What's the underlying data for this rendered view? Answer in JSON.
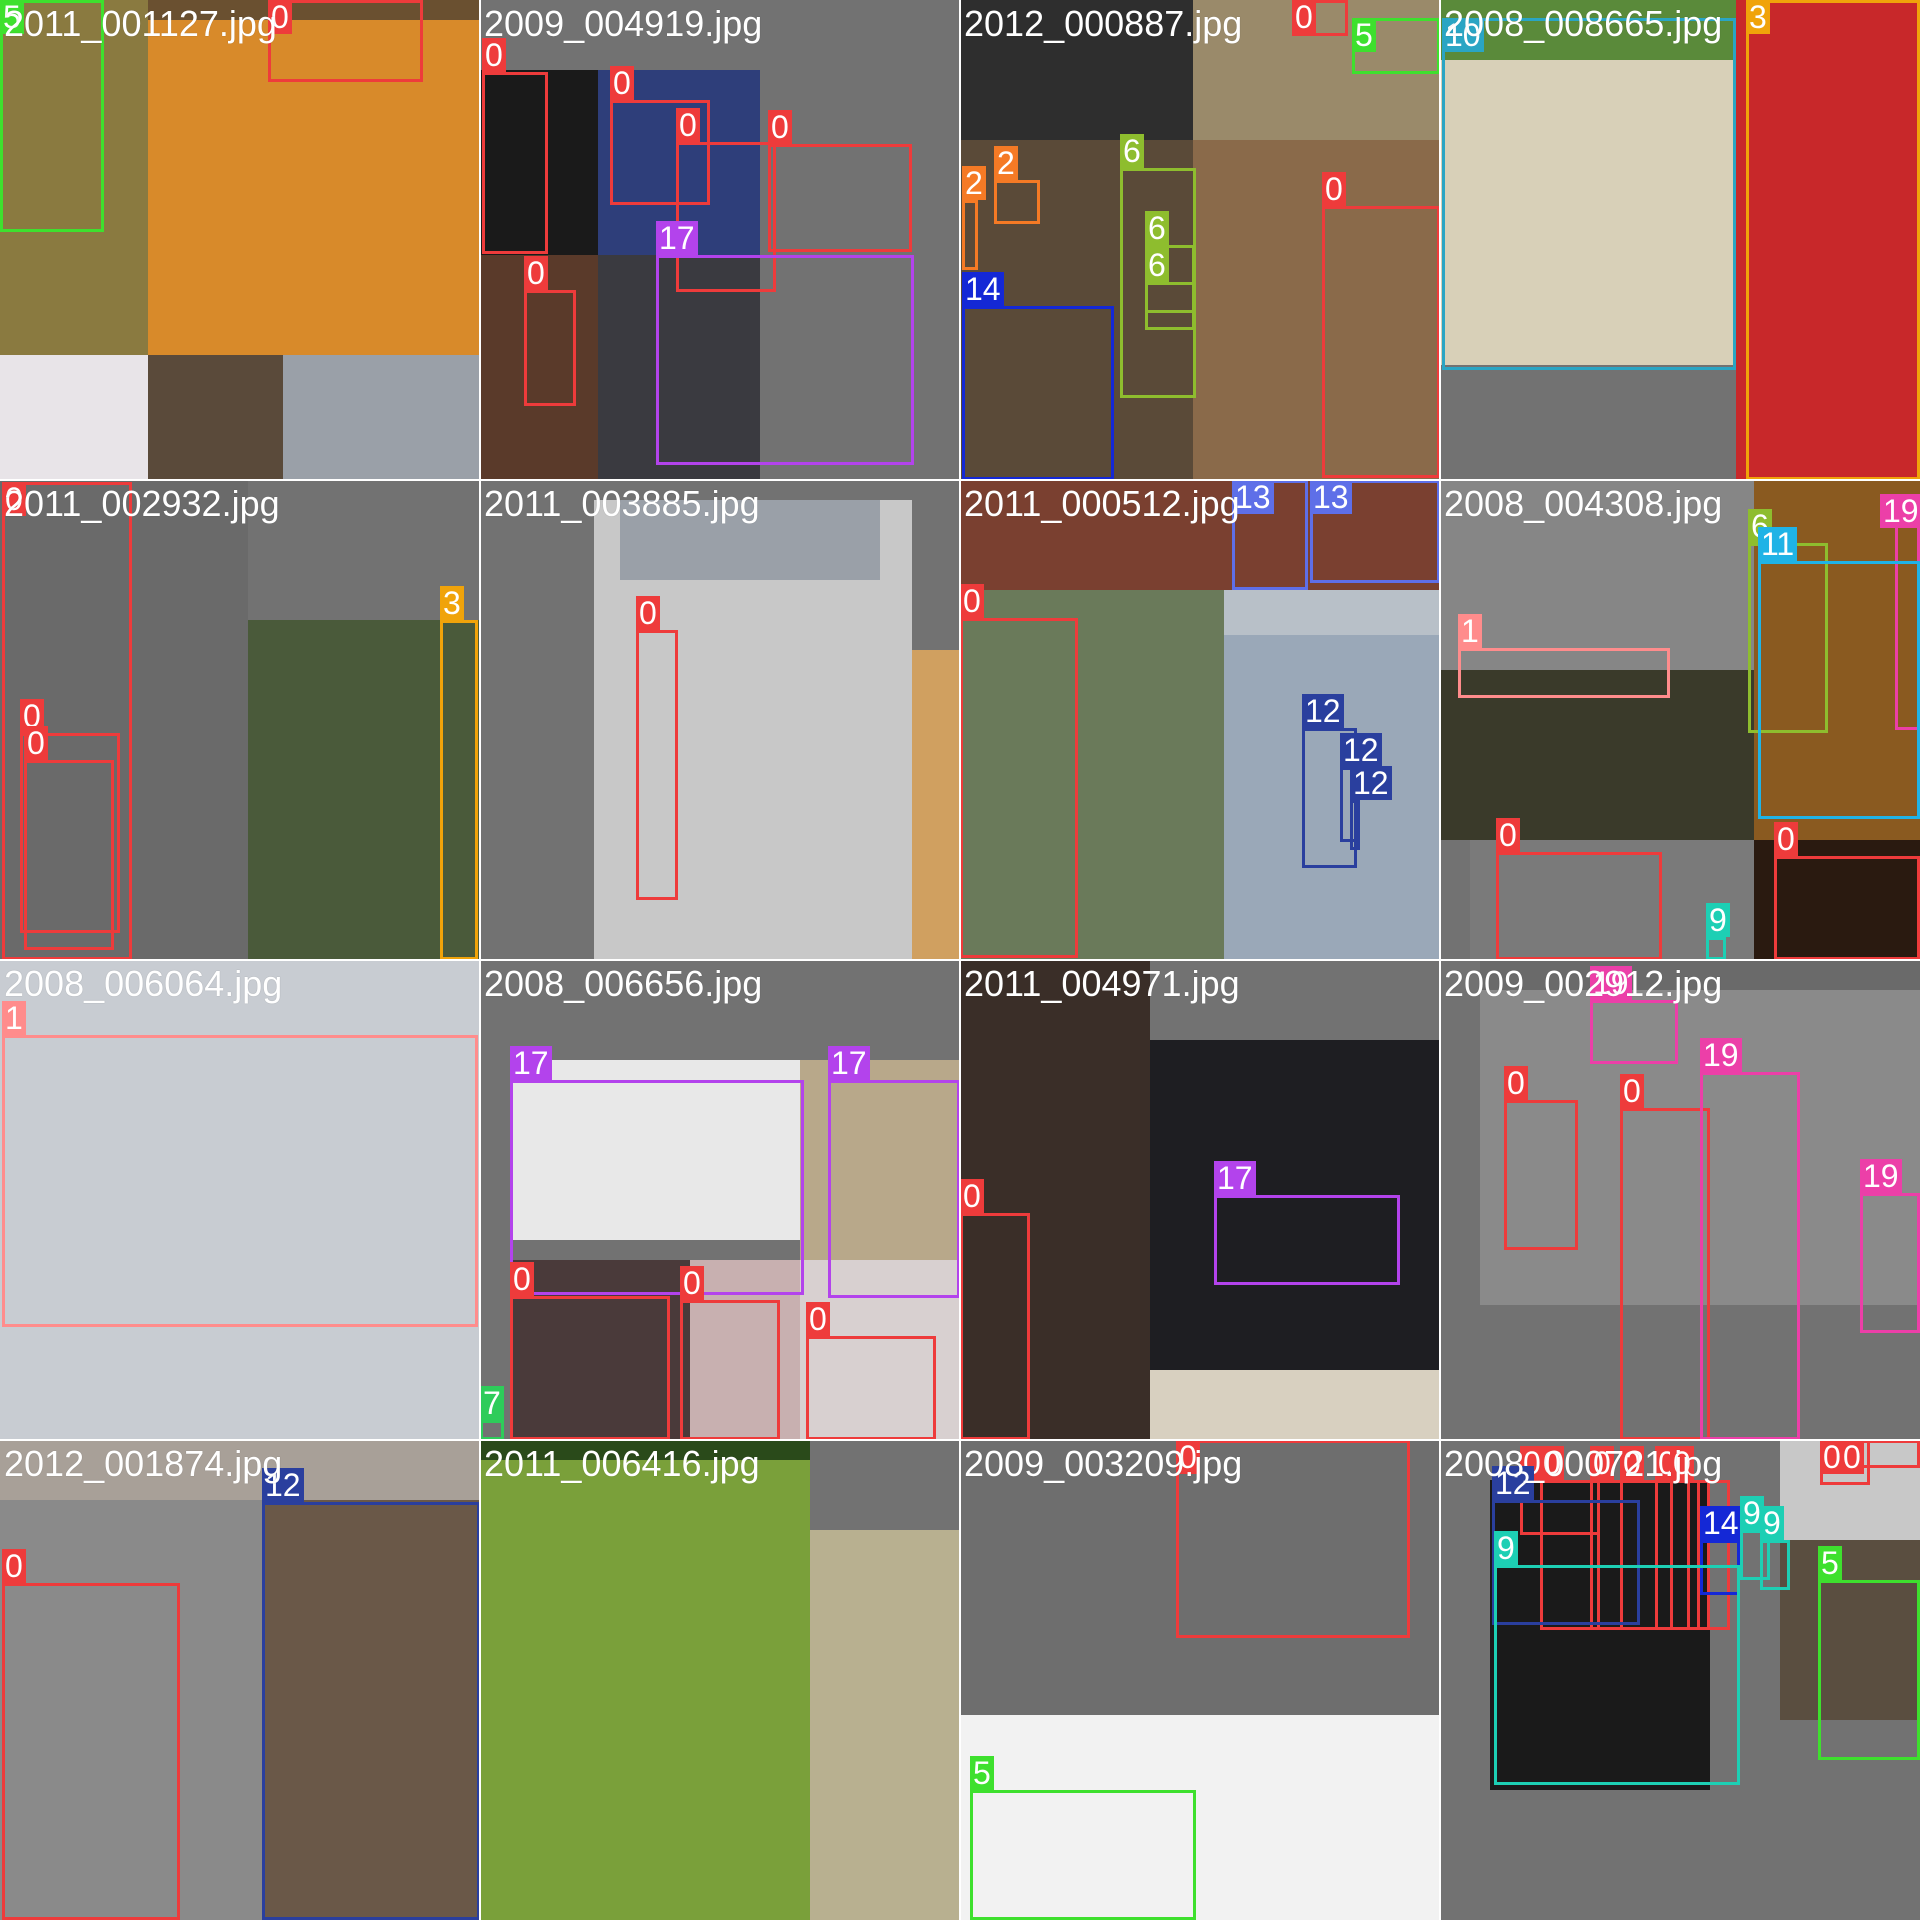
{
  "grid": {
    "cols": 4,
    "rows": 4,
    "background": "#727272",
    "class_colors": {
      "0": "#ee3b3b",
      "1": "#ff8c8c",
      "2": "#f57a25",
      "3": "#f0a30a",
      "5": "#3ee02e",
      "6": "#8ebd2e",
      "7": "#2ecc5a",
      "9": "#1dcfb4",
      "10": "#2aa5c4",
      "11": "#1fb3e6",
      "12": "#2a3f9e",
      "13": "#5e6fe8",
      "14": "#1428d6",
      "17": "#b343ec",
      "19": "#ec3fa8"
    }
  },
  "tiles": [
    {
      "filename": "2011_001127.jpg",
      "labels": [
        "5",
        "0"
      ]
    },
    {
      "filename": "2009_004919.jpg",
      "labels": [
        "0",
        "0",
        "0",
        "0",
        "17",
        "0"
      ]
    },
    {
      "filename": "2012_000887.jpg",
      "labels": [
        "0",
        "5",
        "2",
        "2",
        "6",
        "6",
        "6",
        "14",
        "0"
      ]
    },
    {
      "filename": "2008_008665.jpg",
      "labels": [
        "10",
        "3"
      ]
    },
    {
      "filename": "2011_002932.jpg",
      "labels": [
        "0",
        "3",
        "0",
        "0"
      ]
    },
    {
      "filename": "2011_003885.jpg",
      "labels": [
        "0"
      ]
    },
    {
      "filename": "2011_000512.jpg",
      "labels": [
        "13",
        "13",
        "0",
        "12",
        "12",
        "12"
      ]
    },
    {
      "filename": "2008_004308.jpg",
      "labels": [
        "19",
        "6",
        "11",
        "1",
        "0",
        "0",
        "9"
      ]
    },
    {
      "filename": "2008_006064.jpg",
      "labels": [
        "1"
      ]
    },
    {
      "filename": "2008_006656.jpg",
      "labels": [
        "17",
        "17",
        "0",
        "0",
        "0",
        "7"
      ]
    },
    {
      "filename": "2011_004971.jpg",
      "labels": [
        "0",
        "17"
      ]
    },
    {
      "filename": "2009_002912.jpg",
      "labels": [
        "19",
        "0",
        "0",
        "19",
        "19"
      ]
    },
    {
      "filename": "2012_001874.jpg",
      "labels": [
        "12",
        "0"
      ]
    },
    {
      "filename": "2011_006416.jpg",
      "labels": []
    },
    {
      "filename": "2009_003209.jpg",
      "labels": [
        "0",
        "5"
      ]
    },
    {
      "filename": "2008_000721.jpg",
      "labels": [
        "0",
        "0",
        "0",
        "0",
        "0",
        "0",
        "0",
        "0",
        "12",
        "14",
        "9",
        "9",
        "9",
        "5",
        "12"
      ]
    }
  ]
}
